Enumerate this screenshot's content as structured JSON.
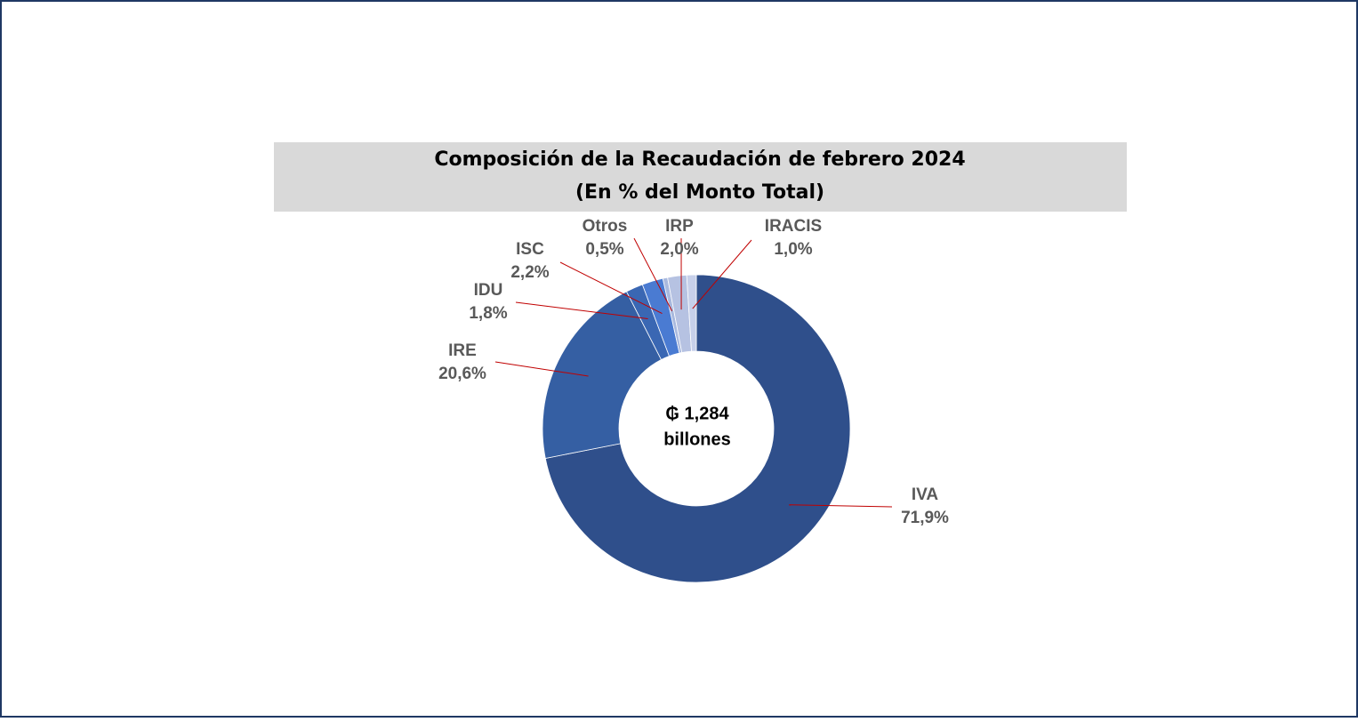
{
  "chart_data": {
    "type": "pie",
    "title": "Composición de la Recaudación de febrero 2024",
    "subtitle": "(En % del Monto Total)",
    "center_label": [
      "₲ 1,284",
      "billones"
    ],
    "categories": [
      "IVA",
      "IRE",
      "IDU",
      "ISC",
      "Otros",
      "IRP",
      "IRACIS"
    ],
    "values": [
      71.9,
      20.6,
      1.8,
      2.2,
      0.5,
      2.0,
      1.0
    ],
    "value_labels": [
      "71,9%",
      "20,6%",
      "1,8%",
      "2,2%",
      "0,5%",
      "2,0%",
      "1,0%"
    ],
    "colors": [
      "#2f4f8b",
      "#355fa3",
      "#3a67b3",
      "#4a7bd2",
      "#a9b9de",
      "#b6c2e2",
      "#c7d0ea"
    ]
  }
}
